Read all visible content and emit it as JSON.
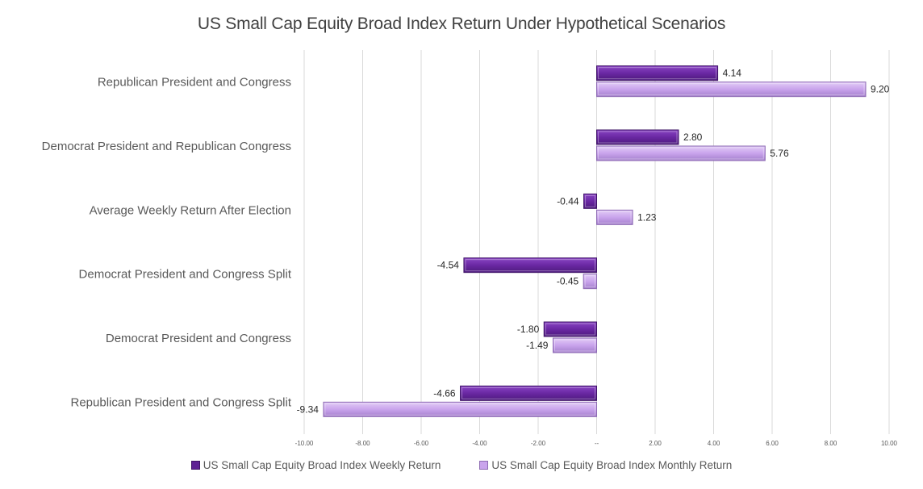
{
  "chart_data": {
    "type": "bar",
    "orientation": "horizontal",
    "title": "US Small Cap Equity Broad Index Return Under Hypothetical Scenarios",
    "categories": [
      "Republican President and Congress",
      "Democrat President and Republican Congress",
      "Average Weekly Return After Election",
      "Democrat President and Congress Split",
      "Democrat President and Congress",
      "Republican President and Congress Split"
    ],
    "series": [
      {
        "name": "US Small Cap Equity Broad Index Weekly Return",
        "values": [
          4.14,
          2.8,
          -0.44,
          -4.54,
          -1.8,
          -4.66
        ],
        "labels": [
          "4.14",
          "2.80",
          "-0.44",
          "-4.54",
          "-1.80",
          "-4.66"
        ],
        "color": "#6f2da8"
      },
      {
        "name": "US Small Cap Equity Broad Index Monthly Return",
        "values": [
          9.2,
          5.76,
          1.23,
          -0.45,
          -1.49,
          -9.34
        ],
        "labels": [
          "9.20",
          "5.76",
          "1.23",
          "-0.45",
          "-1.49",
          "-9.34"
        ],
        "color": "#c9a4ec"
      }
    ],
    "xlim": [
      -10,
      10
    ],
    "xticks": [
      {
        "value": -10,
        "label": "-10.00"
      },
      {
        "value": -8,
        "label": "-8.00"
      },
      {
        "value": -6,
        "label": "-6.00"
      },
      {
        "value": -4,
        "label": "-4.00"
      },
      {
        "value": -2,
        "label": "-2.00"
      },
      {
        "value": 0,
        "label": "--"
      },
      {
        "value": 2,
        "label": "2.00"
      },
      {
        "value": 4,
        "label": "4.00"
      },
      {
        "value": 6,
        "label": "6.00"
      },
      {
        "value": 8,
        "label": "8.00"
      },
      {
        "value": 10,
        "label": "10.00"
      }
    ],
    "grid": true,
    "legend": "bottom",
    "xlabel": "",
    "ylabel": ""
  }
}
